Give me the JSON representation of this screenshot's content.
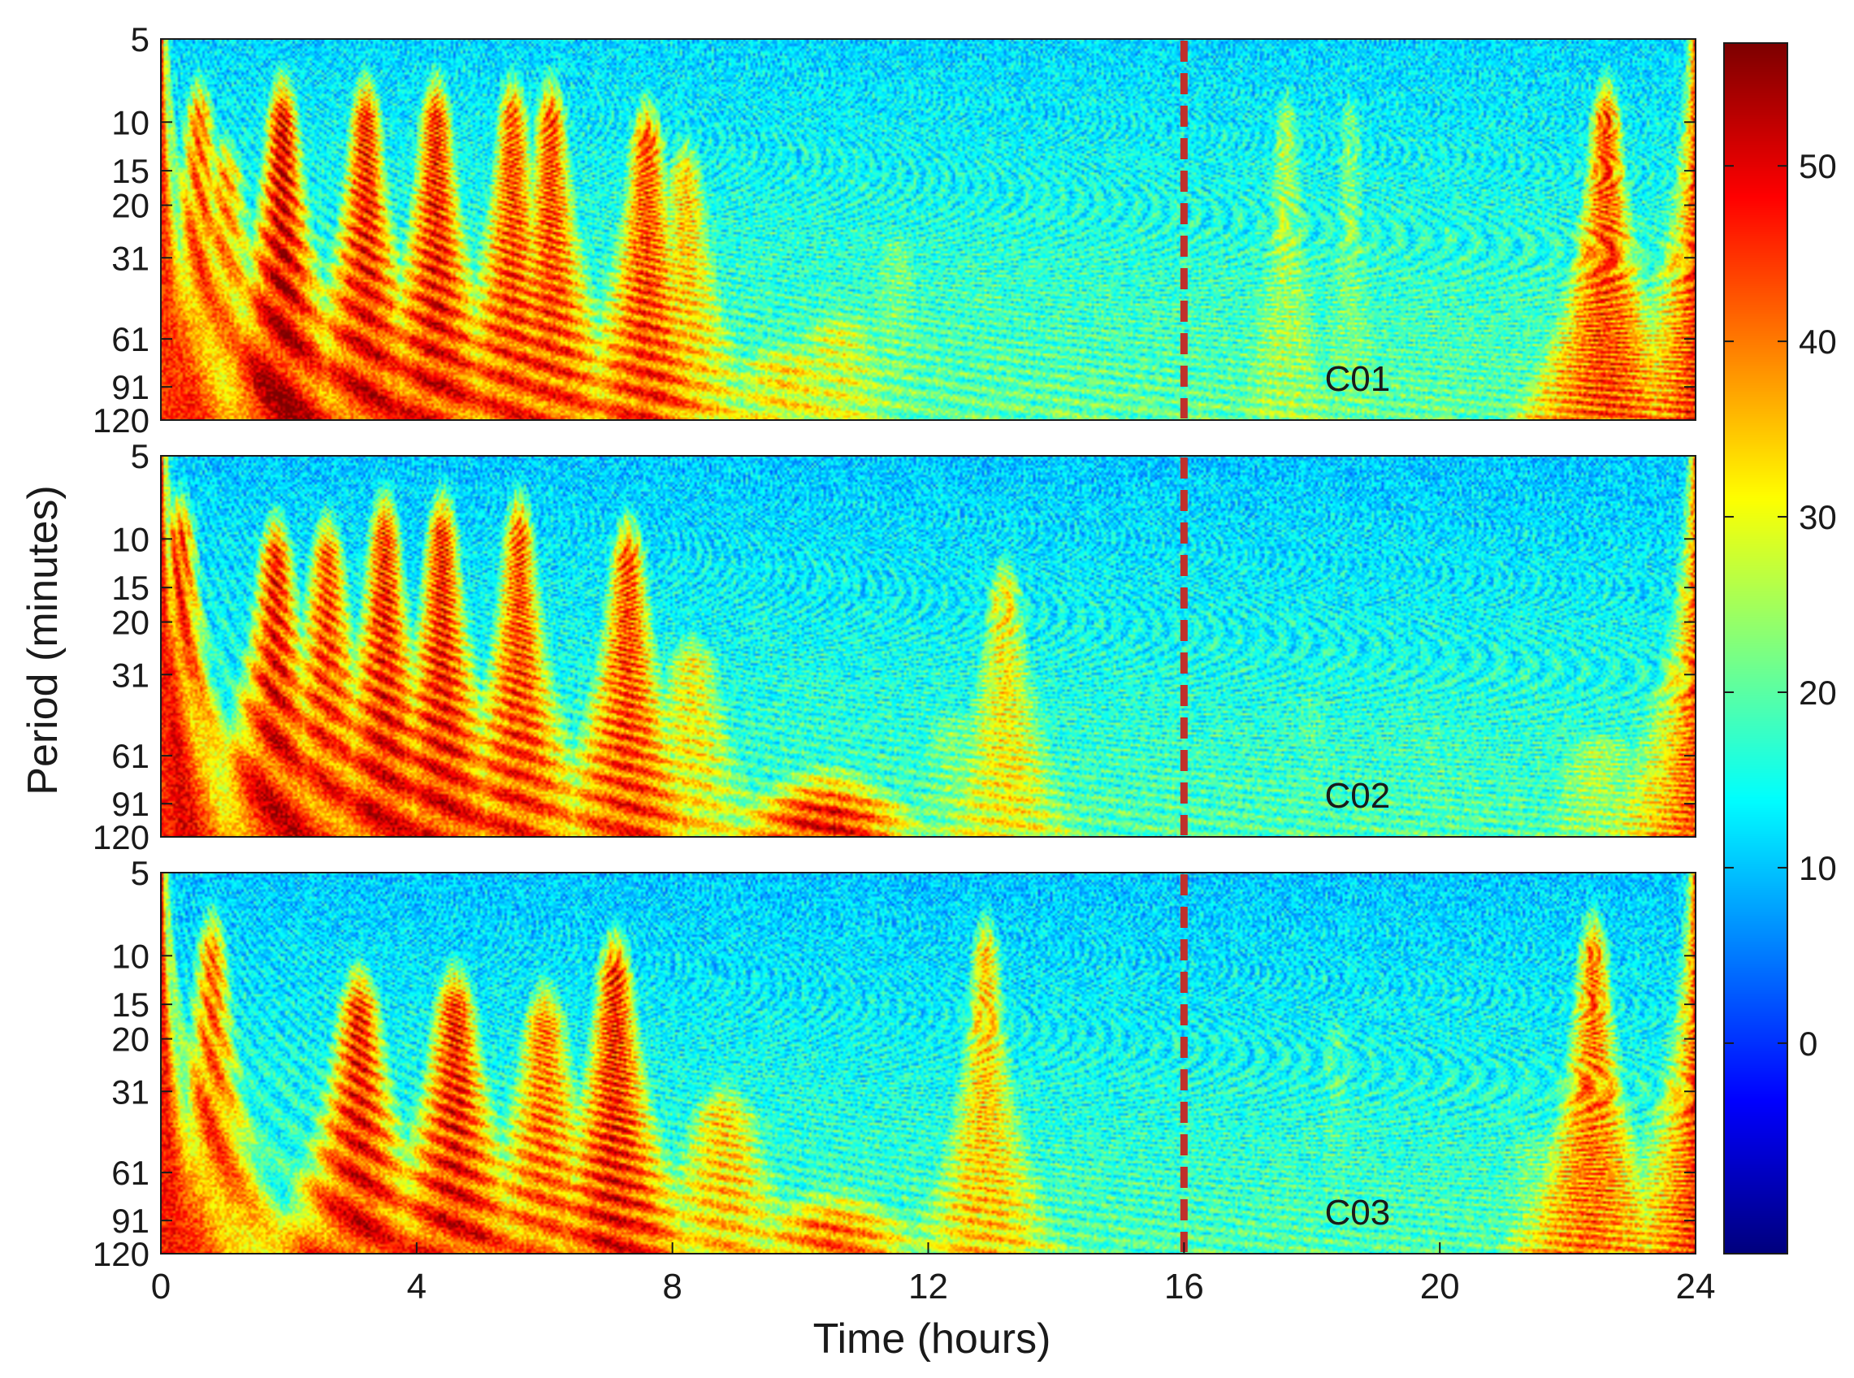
{
  "chart_data": {
    "type": "heatmap",
    "xlabel": "Time (hours)",
    "ylabel": "Period (minutes)",
    "xlim": [
      0,
      24
    ],
    "x_ticks": [
      0,
      4,
      8,
      12,
      16,
      20,
      24
    ],
    "ylim": [
      5,
      120
    ],
    "y_scale": "log",
    "y_ticks": [
      5,
      10,
      15,
      20,
      31,
      61,
      91,
      120
    ],
    "y_reversed": true,
    "colormap": "jet",
    "colorbar": {
      "range": [
        -12,
        57
      ],
      "ticks": [
        0,
        10,
        20,
        30,
        40,
        50
      ]
    },
    "reference_line": {
      "x": 16,
      "style": "dashed",
      "color": "#c0302b"
    },
    "panels": [
      {
        "label": "C01",
        "edge_strength": [
          0.92,
          0.96
        ],
        "background": 0.38,
        "events": [
          {
            "t": 0.6,
            "strength": 0.85,
            "min_period": 5
          },
          {
            "t": 1.0,
            "strength": 0.8,
            "min_period": 8
          },
          {
            "t": 1.9,
            "strength": 1.0,
            "min_period": 5
          },
          {
            "t": 3.2,
            "strength": 0.95,
            "min_period": 5
          },
          {
            "t": 4.3,
            "strength": 0.95,
            "min_period": 5
          },
          {
            "t": 5.5,
            "strength": 0.9,
            "min_period": 5
          },
          {
            "t": 6.1,
            "strength": 0.9,
            "min_period": 5
          },
          {
            "t": 7.6,
            "strength": 0.9,
            "min_period": 6
          },
          {
            "t": 8.2,
            "strength": 0.75,
            "min_period": 8
          },
          {
            "t": 9.8,
            "strength": 0.7,
            "min_period": 40
          },
          {
            "t": 10.6,
            "strength": 0.65,
            "min_period": 30
          },
          {
            "t": 11.5,
            "strength": 0.55,
            "min_period": 15
          },
          {
            "t": 13.0,
            "strength": 0.5,
            "min_period": 20
          },
          {
            "t": 17.6,
            "strength": 0.6,
            "min_period": 5
          },
          {
            "t": 18.6,
            "strength": 0.55,
            "min_period": 5
          },
          {
            "t": 22.6,
            "strength": 0.9,
            "min_period": 5
          }
        ]
      },
      {
        "label": "C02",
        "edge_strength": [
          0.95,
          0.92
        ],
        "background": 0.36,
        "events": [
          {
            "t": 0.3,
            "strength": 0.9,
            "min_period": 5
          },
          {
            "t": 1.8,
            "strength": 0.95,
            "min_period": 6
          },
          {
            "t": 2.6,
            "strength": 0.9,
            "min_period": 6
          },
          {
            "t": 3.5,
            "strength": 0.95,
            "min_period": 5
          },
          {
            "t": 4.4,
            "strength": 0.95,
            "min_period": 5
          },
          {
            "t": 5.6,
            "strength": 0.9,
            "min_period": 5
          },
          {
            "t": 7.3,
            "strength": 0.9,
            "min_period": 6
          },
          {
            "t": 8.3,
            "strength": 0.7,
            "min_period": 15
          },
          {
            "t": 10.4,
            "strength": 0.95,
            "min_period": 50
          },
          {
            "t": 12.4,
            "strength": 0.55,
            "min_period": 25
          },
          {
            "t": 13.2,
            "strength": 0.7,
            "min_period": 8
          },
          {
            "t": 18.0,
            "strength": 0.5,
            "min_period": 20
          },
          {
            "t": 19.8,
            "strength": 0.5,
            "min_period": 25
          },
          {
            "t": 22.5,
            "strength": 0.6,
            "min_period": 30
          }
        ]
      },
      {
        "label": "C03",
        "edge_strength": [
          0.95,
          0.95
        ],
        "background": 0.36,
        "events": [
          {
            "t": 0.8,
            "strength": 0.85,
            "min_period": 5
          },
          {
            "t": 3.1,
            "strength": 0.95,
            "min_period": 8
          },
          {
            "t": 4.6,
            "strength": 0.95,
            "min_period": 8
          },
          {
            "t": 6.0,
            "strength": 0.85,
            "min_period": 9
          },
          {
            "t": 7.1,
            "strength": 0.95,
            "min_period": 6
          },
          {
            "t": 8.8,
            "strength": 0.75,
            "min_period": 20
          },
          {
            "t": 10.5,
            "strength": 0.85,
            "min_period": 50
          },
          {
            "t": 12.9,
            "strength": 0.75,
            "min_period": 5
          },
          {
            "t": 14.2,
            "strength": 0.5,
            "min_period": 30
          },
          {
            "t": 18.4,
            "strength": 0.5,
            "min_period": 10
          },
          {
            "t": 21.5,
            "strength": 0.55,
            "min_period": 25
          },
          {
            "t": 22.4,
            "strength": 0.85,
            "min_period": 5
          }
        ]
      }
    ]
  }
}
